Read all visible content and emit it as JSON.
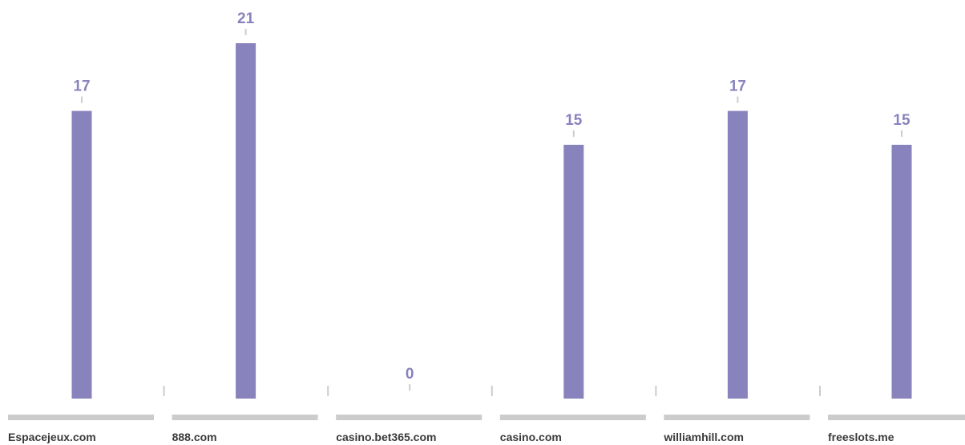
{
  "chart_data": {
    "type": "bar",
    "categories": [
      "Espacejeux.com",
      "888.com",
      "casino.bet365.com",
      "casino.com",
      "williamhill.com",
      "freeslots.me"
    ],
    "values": [
      17,
      21,
      0,
      15,
      17,
      15
    ],
    "ylim": [
      0,
      21
    ],
    "grid": false,
    "legend": "none",
    "colors": {
      "bar": "#8882bd",
      "value_label": "#8882bd",
      "baseline": "#cccccc",
      "separator": "#cccccc",
      "tick_label": "#3a3a3a"
    }
  }
}
